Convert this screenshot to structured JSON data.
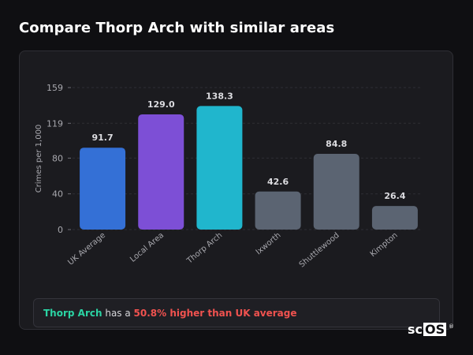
{
  "page": {
    "title": "Compare Thorp Arch with similar areas"
  },
  "chart_data": {
    "type": "bar",
    "categories": [
      "UK Average",
      "Local Area",
      "Thorp Arch",
      "Ixworth",
      "Shuttlewood",
      "Kimpton"
    ],
    "values": [
      91.7,
      129.0,
      138.3,
      42.6,
      84.8,
      26.4
    ],
    "value_labels": [
      "91.7",
      "129.0",
      "138.3",
      "42.6",
      "84.8",
      "26.4"
    ],
    "colors": [
      "#3470d6",
      "#7d4fd6",
      "#20b6cd",
      "#5b6472",
      "#5b6472",
      "#5b6472"
    ],
    "ylabel": "Crimes per 1,000",
    "yticks": [
      0,
      40,
      80,
      119,
      159
    ],
    "ylim": [
      0,
      159
    ],
    "grid": true
  },
  "summary": {
    "area_name": "Thorp Arch",
    "text_middle": " has a ",
    "difference_text": "50.8% higher than UK average"
  },
  "logo": {
    "prefix": "sc",
    "boxed": "OS",
    "mark": "®"
  }
}
